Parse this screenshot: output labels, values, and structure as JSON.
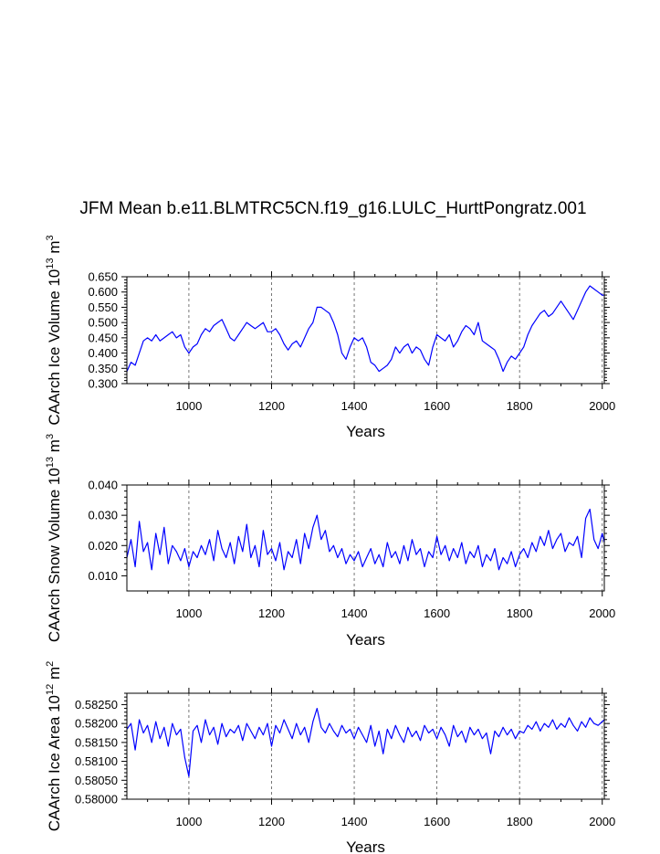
{
  "figure_title": "JFM Mean b.e11.BLMTRC5CN.f19_g16.LULC_HurttPongratz.001",
  "chart_data": [
    {
      "type": "line",
      "title": "JFM Mean b.e11.BLMTRC5CN.f19_g16.LULC_HurttPongratz.001",
      "ylabel": "CAArch Ice Volume 10",
      "ylabel_exp": "13",
      "ylabel_unit": " m",
      "ylabel_unit_exp": "3",
      "xlabel": "Years",
      "xlim": [
        850,
        2005
      ],
      "ylim": [
        0.3,
        0.65
      ],
      "xticks": [
        1000,
        1200,
        1400,
        1600,
        1800,
        2000
      ],
      "yticks": [
        0.3,
        0.35,
        0.4,
        0.45,
        0.5,
        0.55,
        0.6,
        0.65
      ],
      "ytick_labels": [
        "0.300",
        "0.350",
        "0.400",
        "0.450",
        "0.500",
        "0.550",
        "0.600",
        "0.650"
      ],
      "grid": "vertical dashed at x ticks",
      "line_color": "#0000ff",
      "series": [
        {
          "name": "CAArch Ice Volume",
          "x": [
            850,
            860,
            870,
            880,
            890,
            900,
            910,
            920,
            930,
            940,
            950,
            960,
            970,
            980,
            990,
            1000,
            1010,
            1020,
            1030,
            1040,
            1050,
            1060,
            1070,
            1080,
            1090,
            1100,
            1110,
            1120,
            1130,
            1140,
            1150,
            1160,
            1170,
            1180,
            1190,
            1200,
            1210,
            1220,
            1230,
            1240,
            1250,
            1260,
            1270,
            1280,
            1290,
            1300,
            1310,
            1320,
            1330,
            1340,
            1350,
            1360,
            1370,
            1380,
            1390,
            1400,
            1410,
            1420,
            1430,
            1440,
            1450,
            1460,
            1470,
            1480,
            1490,
            1500,
            1510,
            1520,
            1530,
            1540,
            1550,
            1560,
            1570,
            1580,
            1590,
            1600,
            1610,
            1620,
            1630,
            1640,
            1650,
            1660,
            1670,
            1680,
            1690,
            1700,
            1710,
            1720,
            1730,
            1740,
            1750,
            1760,
            1770,
            1780,
            1790,
            1800,
            1810,
            1820,
            1830,
            1840,
            1850,
            1860,
            1870,
            1880,
            1890,
            1900,
            1910,
            1920,
            1930,
            1940,
            1950,
            1960,
            1970,
            1980,
            1990,
            2000,
            2005
          ],
          "values": [
            0.34,
            0.37,
            0.36,
            0.4,
            0.44,
            0.45,
            0.44,
            0.46,
            0.44,
            0.45,
            0.46,
            0.47,
            0.45,
            0.46,
            0.42,
            0.4,
            0.42,
            0.43,
            0.46,
            0.48,
            0.47,
            0.49,
            0.5,
            0.51,
            0.48,
            0.45,
            0.44,
            0.46,
            0.48,
            0.5,
            0.49,
            0.48,
            0.49,
            0.5,
            0.47,
            0.47,
            0.48,
            0.46,
            0.43,
            0.41,
            0.43,
            0.44,
            0.42,
            0.45,
            0.48,
            0.5,
            0.55,
            0.55,
            0.54,
            0.53,
            0.5,
            0.46,
            0.4,
            0.38,
            0.42,
            0.45,
            0.44,
            0.45,
            0.42,
            0.37,
            0.36,
            0.34,
            0.35,
            0.36,
            0.38,
            0.42,
            0.4,
            0.42,
            0.43,
            0.4,
            0.42,
            0.41,
            0.38,
            0.36,
            0.42,
            0.46,
            0.45,
            0.44,
            0.46,
            0.42,
            0.44,
            0.47,
            0.49,
            0.48,
            0.46,
            0.5,
            0.44,
            0.43,
            0.42,
            0.41,
            0.38,
            0.34,
            0.37,
            0.39,
            0.38,
            0.4,
            0.42,
            0.46,
            0.49,
            0.51,
            0.53,
            0.54,
            0.52,
            0.53,
            0.55,
            0.57,
            0.55,
            0.53,
            0.51,
            0.54,
            0.57,
            0.6,
            0.62,
            0.61,
            0.6,
            0.59,
            0.59
          ]
        }
      ]
    },
    {
      "type": "line",
      "ylabel": "CAArch Snow Volume 10",
      "ylabel_exp": "13",
      "ylabel_unit": " m",
      "ylabel_unit_exp": "3",
      "xlabel": "Years",
      "xlim": [
        850,
        2005
      ],
      "ylim": [
        0.005,
        0.04
      ],
      "xticks": [
        1000,
        1200,
        1400,
        1600,
        1800,
        2000
      ],
      "yticks": [
        0.01,
        0.02,
        0.03,
        0.04
      ],
      "ytick_labels": [
        "0.010",
        "0.020",
        "0.030",
        "0.040"
      ],
      "grid": "vertical dashed at x ticks",
      "line_color": "#0000ff",
      "series": [
        {
          "name": "CAArch Snow Volume",
          "x": [
            850,
            860,
            870,
            880,
            890,
            900,
            910,
            920,
            930,
            940,
            950,
            960,
            970,
            980,
            990,
            1000,
            1010,
            1020,
            1030,
            1040,
            1050,
            1060,
            1070,
            1080,
            1090,
            1100,
            1110,
            1120,
            1130,
            1140,
            1150,
            1160,
            1170,
            1180,
            1190,
            1200,
            1210,
            1220,
            1230,
            1240,
            1250,
            1260,
            1270,
            1280,
            1290,
            1300,
            1310,
            1320,
            1330,
            1340,
            1350,
            1360,
            1370,
            1380,
            1390,
            1400,
            1410,
            1420,
            1430,
            1440,
            1450,
            1460,
            1470,
            1480,
            1490,
            1500,
            1510,
            1520,
            1530,
            1540,
            1550,
            1560,
            1570,
            1580,
            1590,
            1600,
            1610,
            1620,
            1630,
            1640,
            1650,
            1660,
            1670,
            1680,
            1690,
            1700,
            1710,
            1720,
            1730,
            1740,
            1750,
            1760,
            1770,
            1780,
            1790,
            1800,
            1810,
            1820,
            1830,
            1840,
            1850,
            1860,
            1870,
            1880,
            1890,
            1900,
            1910,
            1920,
            1930,
            1940,
            1950,
            1960,
            1970,
            1980,
            1990,
            2000,
            2005
          ],
          "values": [
            0.016,
            0.022,
            0.013,
            0.028,
            0.018,
            0.021,
            0.012,
            0.024,
            0.017,
            0.026,
            0.014,
            0.02,
            0.018,
            0.015,
            0.019,
            0.013,
            0.018,
            0.016,
            0.02,
            0.017,
            0.022,
            0.015,
            0.025,
            0.019,
            0.016,
            0.021,
            0.014,
            0.023,
            0.018,
            0.027,
            0.016,
            0.02,
            0.013,
            0.025,
            0.017,
            0.019,
            0.015,
            0.021,
            0.012,
            0.018,
            0.016,
            0.022,
            0.014,
            0.024,
            0.019,
            0.026,
            0.03,
            0.022,
            0.025,
            0.018,
            0.02,
            0.016,
            0.019,
            0.014,
            0.017,
            0.015,
            0.018,
            0.013,
            0.016,
            0.019,
            0.014,
            0.017,
            0.013,
            0.021,
            0.016,
            0.018,
            0.014,
            0.02,
            0.015,
            0.022,
            0.017,
            0.019,
            0.013,
            0.018,
            0.016,
            0.023,
            0.017,
            0.02,
            0.015,
            0.019,
            0.016,
            0.021,
            0.014,
            0.018,
            0.016,
            0.02,
            0.013,
            0.017,
            0.015,
            0.019,
            0.012,
            0.016,
            0.014,
            0.018,
            0.013,
            0.017,
            0.019,
            0.016,
            0.021,
            0.018,
            0.023,
            0.02,
            0.025,
            0.019,
            0.022,
            0.024,
            0.018,
            0.021,
            0.02,
            0.023,
            0.016,
            0.029,
            0.032,
            0.022,
            0.019,
            0.024,
            0.021
          ]
        }
      ]
    },
    {
      "type": "line",
      "ylabel": "CAArch Ice Area 10",
      "ylabel_exp": "12",
      "ylabel_unit": " m",
      "ylabel_unit_exp": "2",
      "xlabel": "Years",
      "xlim": [
        850,
        2005
      ],
      "ylim": [
        0.58,
        0.5828
      ],
      "xticks": [
        1000,
        1200,
        1400,
        1600,
        1800,
        2000
      ],
      "yticks": [
        0.58,
        0.5805,
        0.581,
        0.5815,
        0.582,
        0.5825
      ],
      "ytick_labels": [
        "0.58000",
        "0.58050",
        "0.58100",
        "0.58150",
        "0.58200",
        "0.58250"
      ],
      "grid": "vertical dashed at x ticks",
      "line_color": "#0000ff",
      "series": [
        {
          "name": "CAArch Ice Area",
          "x": [
            850,
            860,
            870,
            880,
            890,
            900,
            910,
            920,
            930,
            940,
            950,
            960,
            970,
            980,
            990,
            1000,
            1010,
            1020,
            1030,
            1040,
            1050,
            1060,
            1070,
            1080,
            1090,
            1100,
            1110,
            1120,
            1130,
            1140,
            1150,
            1160,
            1170,
            1180,
            1190,
            1200,
            1210,
            1220,
            1230,
            1240,
            1250,
            1260,
            1270,
            1280,
            1290,
            1300,
            1310,
            1320,
            1330,
            1340,
            1350,
            1360,
            1370,
            1380,
            1390,
            1400,
            1410,
            1420,
            1430,
            1440,
            1450,
            1460,
            1470,
            1480,
            1490,
            1500,
            1510,
            1520,
            1530,
            1540,
            1550,
            1560,
            1570,
            1580,
            1590,
            1600,
            1610,
            1620,
            1630,
            1640,
            1650,
            1660,
            1670,
            1680,
            1690,
            1700,
            1710,
            1720,
            1730,
            1740,
            1750,
            1760,
            1770,
            1780,
            1790,
            1800,
            1810,
            1820,
            1830,
            1840,
            1850,
            1860,
            1870,
            1880,
            1890,
            1900,
            1910,
            1920,
            1930,
            1940,
            1950,
            1960,
            1970,
            1980,
            1990,
            2000,
            2005
          ],
          "values": [
            0.58185,
            0.582,
            0.5813,
            0.5821,
            0.58175,
            0.58195,
            0.5815,
            0.58205,
            0.5816,
            0.5819,
            0.5814,
            0.582,
            0.5817,
            0.58185,
            0.5811,
            0.5806,
            0.5818,
            0.58195,
            0.5815,
            0.5821,
            0.5817,
            0.5819,
            0.58145,
            0.582,
            0.58165,
            0.58185,
            0.58175,
            0.58195,
            0.58155,
            0.582,
            0.5818,
            0.5816,
            0.5819,
            0.5817,
            0.582,
            0.5814,
            0.58195,
            0.58175,
            0.5821,
            0.58185,
            0.5816,
            0.582,
            0.5817,
            0.5819,
            0.5815,
            0.58205,
            0.5824,
            0.5819,
            0.58175,
            0.582,
            0.5818,
            0.58165,
            0.58195,
            0.58175,
            0.58185,
            0.5816,
            0.5819,
            0.5817,
            0.5815,
            0.58195,
            0.5814,
            0.5818,
            0.5812,
            0.58185,
            0.5816,
            0.58195,
            0.5817,
            0.5815,
            0.5819,
            0.58165,
            0.5818,
            0.58155,
            0.58195,
            0.58175,
            0.58185,
            0.5816,
            0.5819,
            0.5817,
            0.5814,
            0.58195,
            0.58165,
            0.5818,
            0.5815,
            0.5819,
            0.5817,
            0.58185,
            0.5816,
            0.58175,
            0.5812,
            0.5818,
            0.58165,
            0.5819,
            0.5817,
            0.58185,
            0.5816,
            0.5818,
            0.58175,
            0.58195,
            0.58185,
            0.58205,
            0.5818,
            0.582,
            0.5819,
            0.5821,
            0.58185,
            0.582,
            0.5819,
            0.58215,
            0.58195,
            0.5818,
            0.58205,
            0.5819,
            0.58215,
            0.582,
            0.58195,
            0.58205,
            0.5821
          ]
        }
      ]
    }
  ]
}
